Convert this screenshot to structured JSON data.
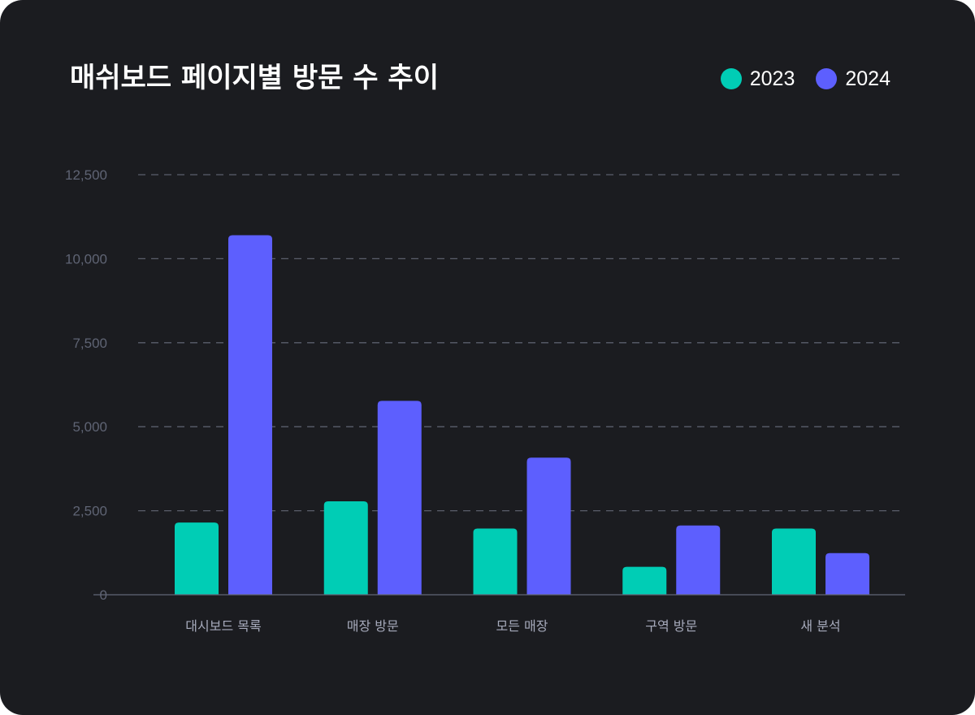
{
  "chart_data": {
    "type": "bar",
    "title": "매쉬보드 페이지별 방문 수 추이",
    "categories": [
      "대시보드 목록",
      "매장 방문",
      "모든 매장",
      "구역 방문",
      "새 분석"
    ],
    "series": [
      {
        "name": "2023",
        "color": "#00cdb5",
        "values": [
          2150,
          2780,
          1970,
          830,
          1970
        ]
      },
      {
        "name": "2024",
        "color": "#5d5ffe",
        "values": [
          10700,
          5770,
          4080,
          2060,
          1240
        ]
      }
    ],
    "y_ticks": [
      0,
      2500,
      5000,
      7500,
      10000,
      12500
    ],
    "y_tick_labels": [
      "0",
      "2,500",
      "5,000",
      "7,500",
      "10,000",
      "12,500"
    ],
    "ylim": [
      0,
      12500
    ],
    "xlabel": "",
    "ylabel": "",
    "grid": true,
    "legend_position": "top-right"
  }
}
